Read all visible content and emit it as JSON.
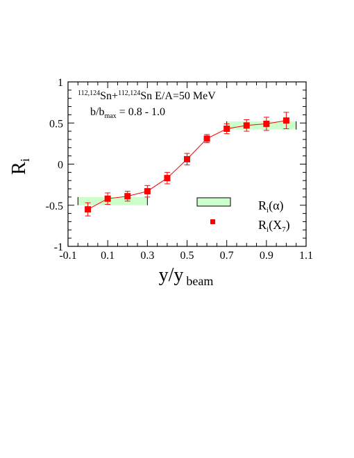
{
  "chart_data": {
    "type": "scatter",
    "xlim": [
      -0.1,
      1.1
    ],
    "ylim": [
      -1,
      1
    ],
    "x_ticks": [
      -0.1,
      0.1,
      0.3,
      0.5,
      0.7,
      0.9,
      1.1
    ],
    "x_tick_labels": [
      "-0.1",
      "0.1",
      "0.3",
      "0.5",
      "0.7",
      "0.9",
      "1.1"
    ],
    "y_ticks": [
      -1,
      -0.5,
      0,
      0.5,
      1
    ],
    "y_tick_labels": [
      "-1",
      "-0.5",
      "0",
      "0.5",
      "1"
    ],
    "xlabel": {
      "main": "y/y",
      "sub": "beam"
    },
    "ylabel": {
      "main": "R",
      "sub": "i"
    },
    "grid": false,
    "legend_position": "right",
    "colors": {
      "marker": "#ff0000",
      "band_fill": "#ccffcc",
      "band_edge": "#000000"
    },
    "annotations": {
      "reaction": {
        "sup1": "112,124",
        "t1": "Sn+",
        "sup2": "112,124",
        "t2": "Sn E/A=50 MeV"
      },
      "impact": {
        "t1": "b/b",
        "sub": "max",
        "t2": " = 0.8 - 1.0"
      }
    },
    "legend": [
      {
        "symbol": "band",
        "main": "R",
        "sub": "i",
        "tail": "(α)"
      },
      {
        "symbol": "square",
        "main": "R",
        "sub": "i",
        "mid": "(X",
        "sub2": "7",
        "tail": ")"
      }
    ],
    "series": [
      {
        "marker": "square",
        "line": true,
        "x": [
          0.0,
          0.1,
          0.2,
          0.3,
          0.4,
          0.5,
          0.6,
          0.7,
          0.8,
          0.9,
          1.0
        ],
        "y": [
          -0.55,
          -0.42,
          -0.39,
          -0.33,
          -0.17,
          0.06,
          0.31,
          0.43,
          0.47,
          0.49,
          0.53
        ],
        "err": [
          0.08,
          0.07,
          0.06,
          0.07,
          0.07,
          0.07,
          0.05,
          0.06,
          0.07,
          0.08,
          0.1
        ]
      }
    ],
    "bands": [
      {
        "x0": -0.05,
        "x1": 0.3,
        "y0": -0.5,
        "y1": -0.4
      },
      {
        "x0": 0.7,
        "x1": 1.05,
        "y0": 0.42,
        "y1": 0.52
      }
    ]
  }
}
